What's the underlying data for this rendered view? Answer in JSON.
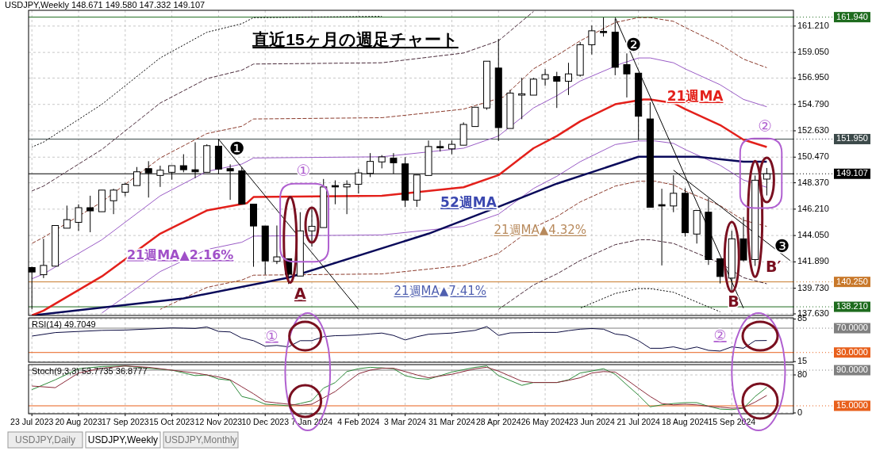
{
  "chart_data": [
    {
      "type": "candlestick",
      "title": "直近15ヶ月の週足チャート",
      "subtitle": "USDJPY,Weekly  148.671 149.580 147.332 149.107",
      "x": [
        "2023-07-23",
        "2023-07-30",
        "2023-08-06",
        "2023-08-13",
        "2023-08-20",
        "2023-08-27",
        "2023-09-03",
        "2023-09-10",
        "2023-09-17",
        "2023-09-24",
        "2023-10-01",
        "2023-10-08",
        "2023-10-15",
        "2023-10-22",
        "2023-10-29",
        "2023-11-05",
        "2023-11-12",
        "2023-11-19",
        "2023-11-26",
        "2023-12-03",
        "2023-12-10",
        "2023-12-17",
        "2023-12-24",
        "2023-12-31",
        "2024-01-07",
        "2024-01-14",
        "2024-01-21",
        "2024-01-28",
        "2024-02-04",
        "2024-02-11",
        "2024-02-18",
        "2024-02-25",
        "2024-03-03",
        "2024-03-10",
        "2024-03-17",
        "2024-03-24",
        "2024-03-31",
        "2024-04-07",
        "2024-04-14",
        "2024-04-21",
        "2024-04-28",
        "2024-05-05",
        "2024-05-12",
        "2024-05-19",
        "2024-05-26",
        "2024-06-02",
        "2024-06-09",
        "2024-06-16",
        "2024-06-23",
        "2024-06-30",
        "2024-07-07",
        "2024-07-14",
        "2024-07-21",
        "2024-07-28",
        "2024-08-04",
        "2024-08-11",
        "2024-08-18",
        "2024-08-25",
        "2024-09-01",
        "2024-09-08",
        "2024-09-15",
        "2024-09-22",
        "2024-09-29",
        "2024-10-06"
      ],
      "ohlc": [
        [
          141.43,
          141.5,
          138.0,
          141.06
        ],
        [
          140.84,
          143.78,
          140.56,
          141.6
        ],
        [
          141.54,
          144.87,
          141.54,
          144.87
        ],
        [
          144.65,
          146.5,
          144.65,
          145.35
        ],
        [
          145.13,
          146.61,
          144.43,
          146.33
        ],
        [
          146.33,
          147.31,
          144.32,
          146.07
        ],
        [
          146.0,
          147.77,
          146.0,
          147.77
        ],
        [
          146.9,
          147.88,
          145.8,
          147.77
        ],
        [
          147.6,
          148.36,
          147.27,
          148.25
        ],
        [
          148.14,
          149.66,
          148.14,
          149.27
        ],
        [
          149.53,
          150.14,
          147.16,
          149.18
        ],
        [
          148.97,
          149.77,
          148.03,
          149.4
        ],
        [
          149.23,
          149.77,
          148.62,
          149.77
        ],
        [
          149.77,
          150.71,
          149.23,
          149.44
        ],
        [
          149.44,
          151.69,
          148.75,
          149.27
        ],
        [
          149.23,
          151.52,
          149.23,
          151.41
        ],
        [
          151.37,
          151.95,
          149.12,
          149.49
        ],
        [
          149.53,
          149.88,
          146.97,
          149.34
        ],
        [
          149.34,
          149.66,
          146.62,
          146.62
        ],
        [
          146.62,
          146.62,
          141.49,
          144.83
        ],
        [
          144.83,
          144.83,
          140.84,
          141.97
        ],
        [
          141.93,
          144.87,
          141.71,
          142.3
        ],
        [
          142.15,
          142.15,
          140.08,
          140.88
        ],
        [
          140.73,
          145.96,
          140.73,
          144.43
        ],
        [
          144.43,
          146.29,
          143.13,
          144.8
        ],
        [
          144.7,
          148.68,
          144.7,
          148.03
        ],
        [
          148.14,
          148.57,
          146.61,
          148.03
        ],
        [
          148.03,
          148.57,
          145.8,
          148.25
        ],
        [
          148.25,
          149.49,
          147.49,
          149.18
        ],
        [
          149.14,
          150.8,
          148.84,
          150.12
        ],
        [
          150.08,
          150.64,
          149.55,
          150.49
        ],
        [
          150.38,
          150.8,
          149.12,
          150.01
        ],
        [
          149.92,
          150.47,
          146.4,
          146.94
        ],
        [
          146.94,
          149.01,
          146.4,
          149.01
        ],
        [
          148.97,
          151.84,
          148.97,
          151.34
        ],
        [
          151.34,
          151.84,
          150.93,
          151.23
        ],
        [
          151.15,
          151.84,
          150.71,
          151.52
        ],
        [
          151.45,
          153.32,
          151.45,
          153.15
        ],
        [
          152.98,
          154.56,
          152.98,
          154.56
        ],
        [
          154.5,
          158.33,
          154.35,
          158.33
        ],
        [
          157.77,
          160.16,
          151.8,
          152.89
        ],
        [
          152.82,
          155.98,
          152.82,
          155.72
        ],
        [
          155.55,
          156.97,
          153.58,
          155.66
        ],
        [
          155.55,
          156.97,
          155.55,
          156.86
        ],
        [
          156.86,
          157.68,
          156.32,
          157.23
        ],
        [
          157.07,
          157.46,
          154.5,
          156.69
        ],
        [
          156.69,
          158.2,
          155.56,
          157.29
        ],
        [
          157.18,
          159.9,
          157.07,
          159.68
        ],
        [
          159.68,
          161.25,
          158.88,
          160.82
        ],
        [
          160.77,
          161.91,
          160.34,
          160.69
        ],
        [
          160.71,
          161.81,
          157.18,
          157.83
        ],
        [
          158.05,
          158.97,
          155.36,
          157.29
        ],
        [
          157.35,
          157.35,
          151.88,
          153.82
        ],
        [
          153.6,
          154.97,
          146.36,
          146.36
        ],
        [
          146.58,
          147.88,
          141.6,
          146.47
        ],
        [
          146.47,
          148.99,
          145.96,
          147.51
        ],
        [
          147.51,
          147.92,
          143.96,
          144.28
        ],
        [
          144.17,
          146.1,
          143.39,
          146.1
        ],
        [
          145.96,
          147.1,
          141.64,
          142.08
        ],
        [
          142.15,
          142.15,
          140.12,
          140.69
        ],
        [
          140.56,
          144.43,
          139.53,
          143.78
        ],
        [
          143.78,
          145.57,
          141.93,
          142.04
        ],
        [
          142.08,
          148.97,
          141.56,
          148.58
        ],
        [
          148.671,
          149.58,
          147.332,
          149.107
        ]
      ],
      "series": [
        {
          "type": "line",
          "color": "#9a5cc6",
          "line_style": "solid",
          "x": [
            "2023-07-23",
            "2023-07-30",
            "2023-09-03",
            "2023-10-08",
            "2023-11-05",
            "2023-11-26",
            "2023-12-03",
            "2024-02-18",
            "2024-04-07",
            "2024-04-28",
            "2024-05-19",
            "2024-06-02",
            "2024-06-16",
            "2024-07-10",
            "2024-07-21",
            "2024-07-28",
            "2024-08-11",
            "2024-08-18",
            "2024-09-08",
            "2024-09-22",
            "2024-10-06"
          ],
          "values": [
            140.5,
            140.9,
            143.7,
            147.3,
            149.3,
            149.9,
            150.4,
            150.5,
            151.2,
            152.2,
            154.5,
            155.5,
            156.7,
            158.1,
            158.6,
            158.6,
            158.2,
            157.7,
            156.4,
            155.2,
            154.6
          ]
        },
        {
          "type": "line",
          "color": "#9a5cc6",
          "line_style": "solid",
          "x": [
            "2023-09-03",
            "2023-10-08",
            "2023-11-05",
            "2023-11-26",
            "2023-12-03",
            "2024-02-18",
            "2024-04-07",
            "2024-04-28",
            "2024-05-19",
            "2024-06-02",
            "2024-06-16",
            "2024-07-07",
            "2024-07-21",
            "2024-07-31",
            "2024-08-11",
            "2024-08-18",
            "2024-09-08",
            "2024-09-22",
            "2024-10-06"
          ],
          "values": [
            137.7,
            141.1,
            142.9,
            143.5,
            144.0,
            144.1,
            144.8,
            145.8,
            147.9,
            148.9,
            150.1,
            151.5,
            151.8,
            151.8,
            151.6,
            151.1,
            149.8,
            148.6,
            148.0
          ]
        },
        {
          "type": "line",
          "color": "#8b3a2b",
          "line_style": "dashed",
          "x": [
            "2023-07-23",
            "2023-07-30",
            "2023-09-03",
            "2023-10-08",
            "2023-11-05",
            "2023-11-26",
            "2023-12-03",
            "2024-02-18",
            "2024-04-07",
            "2024-05-01",
            "2024-05-19",
            "2024-06-02",
            "2024-06-16",
            "2024-07-07",
            "2024-07-21",
            "2024-07-28",
            "2024-08-11",
            "2024-08-18",
            "2024-09-08",
            "2024-09-22",
            "2024-10-06"
          ],
          "values": [
            143.4,
            143.9,
            146.8,
            150.4,
            152.4,
            153.0,
            153.6,
            153.7,
            154.4,
            155.4,
            157.7,
            158.8,
            160.0,
            161.5,
            161.9,
            161.9,
            161.6,
            161.1,
            159.7,
            158.5,
            157.8
          ]
        },
        {
          "type": "line",
          "color": "#8b3a2b",
          "line_style": "dashed",
          "x": [
            "2023-10-08",
            "2023-11-05",
            "2023-11-26",
            "2023-12-03",
            "2024-02-18",
            "2024-04-07",
            "2024-04-28",
            "2024-05-19",
            "2024-06-02",
            "2024-06-16",
            "2024-07-07",
            "2024-07-21",
            "2024-07-31",
            "2024-08-11",
            "2024-08-18",
            "2024-09-08",
            "2024-09-22",
            "2024-10-06"
          ],
          "values": [
            138.0,
            139.8,
            140.4,
            140.8,
            140.9,
            141.6,
            142.6,
            144.7,
            145.6,
            146.8,
            148.1,
            148.5,
            148.5,
            148.2,
            147.7,
            146.5,
            145.3,
            144.8
          ]
        },
        {
          "type": "line",
          "color": "#4a2a3a",
          "line_style": "dashed",
          "x": [
            "2023-07-23",
            "2023-07-30",
            "2023-09-03",
            "2023-10-08",
            "2023-11-05",
            "2023-11-26",
            "2023-12-03",
            "2024-02-18",
            "2024-04-07",
            "2024-04-28",
            "2024-05-19"
          ],
          "values": [
            147.7,
            148.1,
            151.1,
            154.9,
            156.9,
            157.6,
            158.1,
            158.2,
            159.0,
            160.0,
            162.4
          ]
        },
        {
          "type": "line",
          "color": "#4a2a3a",
          "line_style": "dashed",
          "x": [
            "2024-04-28",
            "2024-05-19",
            "2024-06-02",
            "2024-06-16",
            "2024-07-07",
            "2024-07-21",
            "2024-07-28",
            "2024-08-11",
            "2024-08-18",
            "2024-09-08",
            "2024-09-22",
            "2024-10-06"
          ],
          "values": [
            138.0,
            140.0,
            140.9,
            142.0,
            143.3,
            143.7,
            143.7,
            143.4,
            143.0,
            141.8,
            140.6,
            140.1
          ]
        },
        {
          "type": "line",
          "color": "#000000",
          "line_style": "dotted",
          "x": [
            "2023-07-23",
            "2023-07-30",
            "2023-09-03",
            "2023-10-08",
            "2023-11-05",
            "2023-11-26",
            "2023-12-03",
            "2024-02-18"
          ],
          "values": [
            151.3,
            151.7,
            154.8,
            158.6,
            160.7,
            161.4,
            161.9,
            162.0
          ]
        },
        {
          "type": "line",
          "color": "#000000",
          "line_style": "dotted",
          "x": [
            "2024-06-16",
            "2024-07-07",
            "2024-07-21",
            "2024-07-28",
            "2024-08-11",
            "2024-08-18",
            "2024-09-08"
          ],
          "values": [
            138.1,
            139.3,
            139.7,
            139.7,
            139.4,
            139.0,
            137.8
          ]
        },
        {
          "type": "line",
          "color": "#0a0a5a",
          "line_style": "solid",
          "x": [
            "2023-07-23",
            "2023-10-22",
            "2023-12-24",
            "2024-03-17",
            "2024-04-28",
            "2024-06-02",
            "2024-07-21",
            "2024-08-25",
            "2024-09-22",
            "2024-10-06"
          ],
          "values": [
            137.5,
            138.9,
            140.6,
            144.2,
            146.4,
            148.3,
            150.5,
            150.5,
            150.1,
            150.1
          ]
        },
        {
          "type": "line",
          "color": "#e3201b",
          "line_style": "solid",
          "x": [
            "2023-07-23",
            "2023-07-30",
            "2023-09-03",
            "2023-10-08",
            "2023-11-05",
            "2023-11-29",
            "2023-12-03",
            "2024-02-18",
            "2024-04-07",
            "2024-04-28",
            "2024-05-19",
            "2024-06-02",
            "2024-06-16",
            "2024-07-07",
            "2024-07-24",
            "2024-07-28",
            "2024-08-11",
            "2024-08-18",
            "2024-09-08",
            "2024-09-22",
            "2024-10-06"
          ],
          "values": [
            137.5,
            137.9,
            140.7,
            144.2,
            146.1,
            146.7,
            147.2,
            147.3,
            148.0,
            149.0,
            151.2,
            152.2,
            153.4,
            154.8,
            155.2,
            155.2,
            154.9,
            154.4,
            153.1,
            151.9,
            151.3
          ]
        },
        {
          "type": "line",
          "color": "#000000",
          "line_style": "solid",
          "x": [
            "2023-11-12",
            "2024-02-04"
          ],
          "values": [
            151.95,
            138.0
          ]
        },
        {
          "type": "line",
          "color": "#000000",
          "line_style": "solid",
          "x": [
            "2024-07-07",
            "2024-09-22"
          ],
          "values": [
            161.9,
            138.1
          ]
        },
        {
          "type": "line",
          "color": "#000000",
          "line_style": "solid",
          "x": [
            "2024-08-11",
            "2024-10-20"
          ],
          "values": [
            149.4,
            142.0
          ]
        }
      ],
      "xlim": [
        "2023-07-21",
        "2024-10-22"
      ],
      "xticks": [
        {
          "value": "2023-07-23",
          "label": null
        },
        {
          "value": "2023-08-20",
          "label": null
        },
        {
          "value": "2023-09-17",
          "label": null
        },
        {
          "value": "2023-10-15",
          "label": null
        },
        {
          "value": "2023-11-12",
          "label": null
        },
        {
          "value": "2023-12-10",
          "label": null
        },
        {
          "value": "2024-01-07",
          "label": null
        },
        {
          "value": "2024-02-04",
          "label": null
        },
        {
          "value": "2024-03-03",
          "label": null
        },
        {
          "value": "2024-03-31",
          "label": null
        },
        {
          "value": "2024-04-28",
          "label": null
        },
        {
          "value": "2024-05-26",
          "label": null
        },
        {
          "value": "2024-06-23",
          "label": null
        },
        {
          "value": "2024-07-21",
          "label": null
        },
        {
          "value": "2024-08-18",
          "label": null
        },
        {
          "value": "2024-09-15",
          "label": null
        }
      ],
      "ylim": [
        137.5,
        162.5
      ],
      "yticks": [
        {
          "value": 161.21,
          "label": "161.210"
        },
        {
          "value": 159.05,
          "label": "159.050"
        },
        {
          "value": 156.95,
          "label": "156.950"
        },
        {
          "value": 154.79,
          "label": "154.790"
        },
        {
          "value": 152.63,
          "label": "152.630"
        },
        {
          "value": 150.47,
          "label": "150.470"
        },
        {
          "value": 148.37,
          "label": "148.370"
        },
        {
          "value": 146.21,
          "label": "146.210"
        },
        {
          "value": 144.05,
          "label": "144.050"
        },
        {
          "value": 141.89,
          "label": "141.890"
        },
        {
          "value": 139.73,
          "label": "139.730"
        },
        {
          "value": 137.63,
          "label": "137.630"
        }
      ],
      "ref_lines": [
        {
          "axis": "y",
          "value": 161.94,
          "label": "161.940",
          "color": "#1e6b1e"
        },
        {
          "axis": "y",
          "value": 151.95,
          "label": "151.950",
          "color": "#3c4a4a"
        },
        {
          "axis": "y",
          "value": 149.107,
          "label": "149.107",
          "color": "#000000"
        },
        {
          "axis": "y",
          "value": 140.25,
          "label": "140.250",
          "color": "#c8782a"
        },
        {
          "axis": "y",
          "value": 138.21,
          "label": "138.210",
          "color": "#1e6b1e"
        }
      ],
      "annotations": [
        "21週MA",
        "52週MA",
        "21週MA▲2.16%",
        "21週MA▲4.32%",
        "21週MA▲7.41%",
        "❶",
        "❷",
        "❸",
        "①",
        "②",
        "A",
        "B",
        "B′"
      ],
      "grid": true,
      "tick_labels": "y"
    },
    {
      "type": "line",
      "title": "RSI(14) 49.7049",
      "x": [
        "2023-07-23",
        "2023-08-06",
        "2023-09-03",
        "2023-09-17",
        "2023-10-15",
        "2023-10-22",
        "2023-10-29",
        "2023-11-05",
        "2023-11-12",
        "2023-11-19",
        "2023-11-26",
        "2023-12-03",
        "2023-12-10",
        "2023-12-17",
        "2023-12-24",
        "2023-12-31",
        "2024-01-07",
        "2024-01-14",
        "2024-01-21",
        "2024-01-28",
        "2024-02-04",
        "2024-02-11",
        "2024-02-18",
        "2024-02-25",
        "2024-03-03",
        "2024-03-10",
        "2024-03-17",
        "2024-03-31",
        "2024-04-14",
        "2024-04-21",
        "2024-04-28",
        "2024-05-05",
        "2024-05-19",
        "2024-06-02",
        "2024-06-09",
        "2024-06-16",
        "2024-06-23",
        "2024-06-30",
        "2024-07-07",
        "2024-07-14",
        "2024-07-21",
        "2024-07-28",
        "2024-08-04",
        "2024-08-11",
        "2024-08-18",
        "2024-08-25",
        "2024-09-01",
        "2024-09-08",
        "2024-09-15",
        "2024-09-22",
        "2024-09-29",
        "2024-10-06"
      ],
      "series": [
        {
          "color": "#0a0a40",
          "values": [
            57,
            62.7,
            66.4,
            66.9,
            70.5,
            70,
            69.5,
            72,
            64.7,
            63.8,
            53.7,
            49.4,
            40.3,
            41.6,
            39.3,
            49.4,
            49.4,
            56,
            57.7,
            58,
            59,
            60.5,
            62,
            58,
            50.6,
            56,
            60,
            62,
            66.4,
            72.6,
            58,
            62.2,
            63,
            63,
            66,
            68.4,
            69.4,
            68.4,
            60.4,
            58,
            49.4,
            37,
            37,
            39.3,
            35,
            39,
            33.6,
            32.4,
            39.3,
            37,
            49.4,
            49.7
          ]
        }
      ],
      "xlim": [
        "2023-07-21",
        "2024-10-22"
      ],
      "xticks": [
        {
          "value": "2023-07-23",
          "label": null
        },
        {
          "value": "2023-08-20",
          "label": null
        },
        {
          "value": "2023-09-17",
          "label": null
        },
        {
          "value": "2023-10-15",
          "label": null
        },
        {
          "value": "2023-11-12",
          "label": null
        },
        {
          "value": "2023-12-10",
          "label": null
        },
        {
          "value": "2024-01-07",
          "label": null
        },
        {
          "value": "2024-02-04",
          "label": null
        },
        {
          "value": "2024-03-03",
          "label": null
        },
        {
          "value": "2024-03-31",
          "label": null
        },
        {
          "value": "2024-04-28",
          "label": null
        },
        {
          "value": "2024-05-26",
          "label": null
        },
        {
          "value": "2024-06-23",
          "label": null
        },
        {
          "value": "2024-07-21",
          "label": null
        },
        {
          "value": "2024-08-18",
          "label": null
        },
        {
          "value": "2024-09-15",
          "label": null
        }
      ],
      "ylim": [
        14,
        87
      ],
      "yticks": [
        85,
        15
      ],
      "ref_lines": [
        {
          "axis": "y",
          "value": 70,
          "label": "70.0000",
          "color": "#808080"
        },
        {
          "axis": "y",
          "value": 30,
          "label": "30.0000",
          "color": "#e8601c"
        }
      ],
      "annotations": [
        "①",
        "②"
      ],
      "grid": true,
      "tick_labels": "y"
    },
    {
      "type": "line",
      "title": "Stoch(9,3,3) 53.7735 36.8777",
      "x": [
        "2023-07-23",
        "2023-08-06",
        "2023-08-20",
        "2023-09-03",
        "2023-09-17",
        "2023-10-01",
        "2023-10-15",
        "2023-10-29",
        "2023-11-05",
        "2023-11-12",
        "2023-11-19",
        "2023-11-26",
        "2023-12-03",
        "2023-12-10",
        "2023-12-17",
        "2023-12-24",
        "2023-12-31",
        "2024-01-07",
        "2024-01-14",
        "2024-01-21",
        "2024-01-28",
        "2024-02-04",
        "2024-02-11",
        "2024-02-18",
        "2024-02-25",
        "2024-03-03",
        "2024-03-10",
        "2024-03-17",
        "2024-03-31",
        "2024-04-14",
        "2024-04-21",
        "2024-04-28",
        "2024-05-12",
        "2024-05-19",
        "2024-06-02",
        "2024-06-09",
        "2024-06-16",
        "2024-06-23",
        "2024-06-30",
        "2024-07-07",
        "2024-07-14",
        "2024-07-21",
        "2024-07-28",
        "2024-08-04",
        "2024-08-11",
        "2024-08-18",
        "2024-08-25",
        "2024-09-01",
        "2024-09-08",
        "2024-09-15",
        "2024-09-22",
        "2024-09-29",
        "2024-10-06"
      ],
      "series": [
        {
          "color": "#2e8b3a",
          "values": [
            49,
            69.7,
            93,
            97.7,
            98.8,
            94,
            90,
            78.6,
            80,
            71.5,
            68.6,
            34.6,
            28.7,
            18.3,
            17,
            15,
            19.8,
            25.6,
            52.2,
            63.8,
            87,
            93,
            96,
            94.8,
            93,
            78.6,
            72.7,
            71,
            86,
            96,
            98.8,
            78.6,
            58,
            64,
            64,
            69.7,
            84,
            88.2,
            93,
            81.4,
            59,
            37.5,
            12.9,
            17,
            19.8,
            21.6,
            21.6,
            14,
            8.2,
            7,
            10,
            34.6,
            53.8
          ]
        },
        {
          "color": "#8b2a3a",
          "values": [
            56.6,
            53.1,
            84,
            94,
            98.8,
            96,
            90,
            84,
            80,
            75.6,
            69.7,
            55,
            40.4,
            24,
            21,
            18.3,
            16,
            18.3,
            31.7,
            45,
            64,
            82.5,
            90,
            94,
            94,
            87,
            80,
            74,
            81.4,
            93,
            96,
            88,
            66.6,
            64,
            64,
            68.6,
            74,
            84,
            87,
            86,
            69.7,
            52,
            34.6,
            19.8,
            17,
            18.3,
            17,
            14,
            12.3,
            10,
            11.1,
            22.8,
            36.9
          ]
        }
      ],
      "xlim": [
        "2023-07-21",
        "2024-10-22"
      ],
      "xticks": [
        {
          "value": "2023-07-23",
          "label": "23 Jul 2023"
        },
        {
          "value": "2023-08-20",
          "label": "20 Aug 2023"
        },
        {
          "value": "2023-09-17",
          "label": "17 Sep 2023"
        },
        {
          "value": "2023-10-15",
          "label": "15 Oct 2023"
        },
        {
          "value": "2023-11-12",
          "label": "12 Nov 2023"
        },
        {
          "value": "2023-12-10",
          "label": "10 Dec 2023"
        },
        {
          "value": "2024-01-07",
          "label": "7 Jan 2024"
        },
        {
          "value": "2024-02-04",
          "label": "4 Feb 2024"
        },
        {
          "value": "2024-03-03",
          "label": "3 Mar 2024"
        },
        {
          "value": "2024-03-31",
          "label": "31 Mar 2024"
        },
        {
          "value": "2024-04-28",
          "label": "28 Apr 2024"
        },
        {
          "value": "2024-05-26",
          "label": "26 May 2024"
        },
        {
          "value": "2024-06-23",
          "label": "23 Jun 2024"
        },
        {
          "value": "2024-07-21",
          "label": "21 Jul 2024"
        },
        {
          "value": "2024-08-18",
          "label": "18 Aug 2024"
        },
        {
          "value": "2024-09-15",
          "label": "15 Sep 2024"
        }
      ],
      "ylim": [
        -1.7,
        101.7
      ],
      "yticks": [
        80,
        0
      ],
      "ref_lines": [
        {
          "axis": "y",
          "value": 90,
          "label": "90.0000",
          "color": "#808080"
        },
        {
          "axis": "y",
          "value": 15,
          "label": "15.0000",
          "color": "#e8601c"
        }
      ],
      "annotations": [
        "USDJPY,Daily",
        "USDJPY,Weekly",
        "USDJPY,Monthly"
      ],
      "grid": true
    }
  ]
}
